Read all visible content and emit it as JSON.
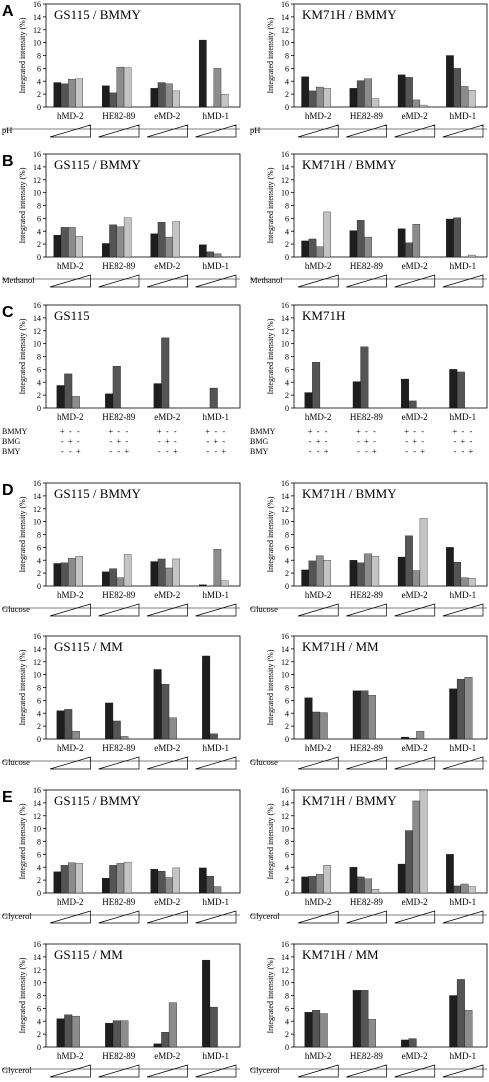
{
  "figure": {
    "panel_letters": [
      "A",
      "B",
      "C",
      "D",
      "E"
    ],
    "y_axis_label": "Integrated intensity (%)",
    "y_ticks": [
      "0",
      "2",
      "4",
      "6",
      "8",
      "10",
      "12",
      "14",
      "16"
    ]
  },
  "series_colors": [
    "#1e1e1e",
    "#555555",
    "#8c8c8c",
    "#c4c4c4"
  ],
  "chart_data": [
    {
      "type": "bar",
      "id": "A-left",
      "title": "GS115 / BMMY",
      "row_label": "pH",
      "ylabel": "Integrated intensity (%)",
      "ylim": [
        0,
        16
      ],
      "categories": [
        "hMD-2",
        "HE82-89",
        "eMD-2",
        "hMD-1"
      ],
      "values": [
        [
          3.8,
          3.6,
          4.3,
          4.4
        ],
        [
          3.3,
          2.2,
          6.2,
          6.1
        ],
        [
          2.9,
          3.8,
          3.6,
          2.5
        ],
        [
          10.4,
          0,
          6.0,
          2.0
        ]
      ],
      "condition_marker": "wedge"
    },
    {
      "type": "bar",
      "id": "A-right",
      "title": "KM71H / BMMY",
      "row_label": "pH",
      "ylabel": "Integrated intensity (%)",
      "ylim": [
        0,
        16
      ],
      "categories": [
        "hMD-2",
        "HE82-89",
        "eMD-2",
        "hMD-1"
      ],
      "values": [
        [
          4.7,
          2.5,
          3.1,
          2.9
        ],
        [
          2.9,
          4.1,
          4.4,
          1.3
        ],
        [
          5.0,
          4.6,
          1.1,
          0.3
        ],
        [
          8.0,
          6.0,
          3.2,
          2.6
        ]
      ],
      "condition_marker": "wedge"
    },
    {
      "type": "bar",
      "id": "B-left",
      "title": "GS115 / BMMY",
      "row_label": "Methanol",
      "ylabel": "Integrated intensity (%)",
      "ylim": [
        0,
        16
      ],
      "categories": [
        "hMD-2",
        "HE82-89",
        "eMD-2",
        "hMD-1"
      ],
      "values": [
        [
          3.4,
          4.6,
          4.6,
          3.2
        ],
        [
          2.1,
          5.0,
          4.7,
          6.1
        ],
        [
          3.6,
          5.4,
          3.1,
          5.5
        ],
        [
          1.9,
          0.8,
          0.5,
          0
        ]
      ],
      "condition_marker": "wedge"
    },
    {
      "type": "bar",
      "id": "B-right",
      "title": "KM71H / BMMY",
      "row_label": "Methanol",
      "ylabel": "Integrated intensity (%)",
      "ylim": [
        0,
        16
      ],
      "categories": [
        "hMD-2",
        "HE82-89",
        "eMD-2",
        "hMD-1"
      ],
      "values": [
        [
          2.5,
          2.8,
          1.6,
          7.0
        ],
        [
          4.1,
          5.7,
          3.1,
          0
        ],
        [
          4.4,
          2.2,
          5.1,
          0
        ],
        [
          5.9,
          6.1,
          0,
          0.3
        ]
      ],
      "condition_marker": "wedge"
    },
    {
      "type": "bar",
      "id": "C-left",
      "title": "GS115",
      "ylabel": "Integrated intensity (%)",
      "ylim": [
        0,
        16
      ],
      "categories": [
        "hMD-2",
        "HE82-89",
        "eMD-2",
        "hMD-1"
      ],
      "values": [
        [
          3.5,
          5.3,
          1.8
        ],
        [
          2.2,
          6.5,
          0
        ],
        [
          3.8,
          10.9,
          0
        ],
        [
          0,
          3.1,
          0
        ]
      ],
      "condition_marker": "table",
      "condition_rows": [
        {
          "label": "BMMY",
          "marks": [
            "+",
            "-",
            "-"
          ]
        },
        {
          "label": "BMG",
          "marks": [
            "-",
            "+",
            "-"
          ]
        },
        {
          "label": "BMY",
          "marks": [
            "-",
            "-",
            "+"
          ]
        }
      ]
    },
    {
      "type": "bar",
      "id": "C-right",
      "title": "KM71H",
      "ylabel": "Integrated intensity (%)",
      "ylim": [
        0,
        16
      ],
      "categories": [
        "hMD-2",
        "HE82-89",
        "eMD-2",
        "hMD-1"
      ],
      "values": [
        [
          2.4,
          7.1,
          0
        ],
        [
          4.1,
          9.5,
          0
        ],
        [
          4.5,
          1.1,
          0
        ],
        [
          6.0,
          5.6,
          0
        ]
      ],
      "condition_marker": "table",
      "condition_rows": [
        {
          "label": "BMMY",
          "marks": [
            "+",
            "-",
            "-"
          ]
        },
        {
          "label": "BMG",
          "marks": [
            "-",
            "+",
            "-"
          ]
        },
        {
          "label": "BMY",
          "marks": [
            "-",
            "-",
            "+"
          ]
        }
      ]
    },
    {
      "type": "bar",
      "id": "D1-left",
      "title": "GS115 / BMMY",
      "row_label": "Glucose",
      "ylabel": "Integrated intensity (%)",
      "ylim": [
        0,
        16
      ],
      "categories": [
        "hMD-2",
        "HE82-89",
        "eMD-2",
        "hMD-1"
      ],
      "values": [
        [
          3.5,
          3.6,
          4.3,
          4.6
        ],
        [
          2.2,
          2.7,
          1.3,
          4.9
        ],
        [
          3.8,
          4.2,
          2.8,
          4.2
        ],
        [
          0.2,
          0,
          5.7,
          0.8
        ]
      ],
      "condition_marker": "wedge"
    },
    {
      "type": "bar",
      "id": "D1-right",
      "title": "KM71H / BMMY",
      "row_label": "Glucose",
      "ylabel": "Integrated intensity (%)",
      "ylim": [
        0,
        16
      ],
      "categories": [
        "hMD-2",
        "HE82-89",
        "eMD-2",
        "hMD-1"
      ],
      "values": [
        [
          2.5,
          3.9,
          4.7,
          4.0
        ],
        [
          4.0,
          3.6,
          5.0,
          4.6
        ],
        [
          4.5,
          7.8,
          2.4,
          10.5
        ],
        [
          6.0,
          3.7,
          1.3,
          1.2
        ]
      ],
      "condition_marker": "wedge"
    },
    {
      "type": "bar",
      "id": "D2-left",
      "title": "GS115 / MM",
      "row_label": "Glucose",
      "ylabel": "Integrated intensity (%)",
      "ylim": [
        0,
        16
      ],
      "categories": [
        "hMD-2",
        "HE82-89",
        "eMD-2",
        "hMD-1"
      ],
      "values": [
        [
          4.4,
          4.6,
          1.2
        ],
        [
          5.6,
          2.8,
          0.4
        ],
        [
          10.8,
          8.5,
          3.3
        ],
        [
          12.9,
          0.8,
          0
        ]
      ],
      "condition_marker": "wedge"
    },
    {
      "type": "bar",
      "id": "D2-right",
      "title": "KM71H / MM",
      "row_label": "Glucose",
      "ylabel": "Integrated intensity (%)",
      "ylim": [
        0,
        16
      ],
      "categories": [
        "hMD-2",
        "HE82-89",
        "eMD-2",
        "hMD-1"
      ],
      "values": [
        [
          6.4,
          4.2,
          4.1
        ],
        [
          7.5,
          7.5,
          6.8
        ],
        [
          0.3,
          0.1,
          1.2
        ],
        [
          7.8,
          9.3,
          9.6
        ]
      ],
      "condition_marker": "wedge"
    },
    {
      "type": "bar",
      "id": "E1-left",
      "title": "GS115 / BMMY",
      "row_label": "Glycerol",
      "ylabel": "Integrated intensity (%)",
      "ylim": [
        0,
        16
      ],
      "categories": [
        "hMD-2",
        "HE82-89",
        "eMD-2",
        "hMD-1"
      ],
      "values": [
        [
          3.3,
          4.3,
          4.7,
          4.6
        ],
        [
          2.3,
          4.3,
          4.6,
          4.8
        ],
        [
          3.7,
          3.4,
          2.4,
          3.9
        ],
        [
          3.9,
          2.6,
          1.0,
          0
        ]
      ],
      "condition_marker": "wedge"
    },
    {
      "type": "bar",
      "id": "E1-right",
      "title": "KM71H / BMMY",
      "row_label": "Glycerol",
      "ylabel": "Integrated intensity (%)",
      "ylim": [
        0,
        16
      ],
      "categories": [
        "hMD-2",
        "HE82-89",
        "eMD-2",
        "hMD-1"
      ],
      "values": [
        [
          2.5,
          2.6,
          2.9,
          4.3
        ],
        [
          4.0,
          2.5,
          2.2,
          0.6
        ],
        [
          4.5,
          9.7,
          14.3,
          16.0
        ],
        [
          6.0,
          1.1,
          1.4,
          1.0
        ]
      ],
      "condition_marker": "wedge"
    },
    {
      "type": "bar",
      "id": "E2-left",
      "title": "GS115 / MM",
      "row_label": "Glycerol",
      "ylabel": "Integrated intensity (%)",
      "ylim": [
        0,
        16
      ],
      "categories": [
        "hMD-2",
        "HE82-89",
        "eMD-2",
        "hMD-1"
      ],
      "values": [
        [
          4.4,
          5.0,
          4.8
        ],
        [
          3.7,
          4.1,
          4.1
        ],
        [
          0.5,
          2.3,
          6.9
        ],
        [
          13.5,
          6.2,
          0
        ]
      ],
      "condition_marker": "wedge"
    },
    {
      "type": "bar",
      "id": "E2-right",
      "title": "KM71H / MM",
      "row_label": "Glycerol",
      "ylabel": "Integrated intensity (%)",
      "ylim": [
        0,
        16
      ],
      "categories": [
        "hMD-2",
        "HE82-89",
        "eMD-2",
        "hMD-1"
      ],
      "values": [
        [
          5.4,
          5.7,
          5.2
        ],
        [
          8.8,
          8.8,
          4.3
        ],
        [
          1.1,
          1.3,
          0
        ],
        [
          8.0,
          10.5,
          5.7
        ]
      ],
      "condition_marker": "wedge"
    }
  ]
}
